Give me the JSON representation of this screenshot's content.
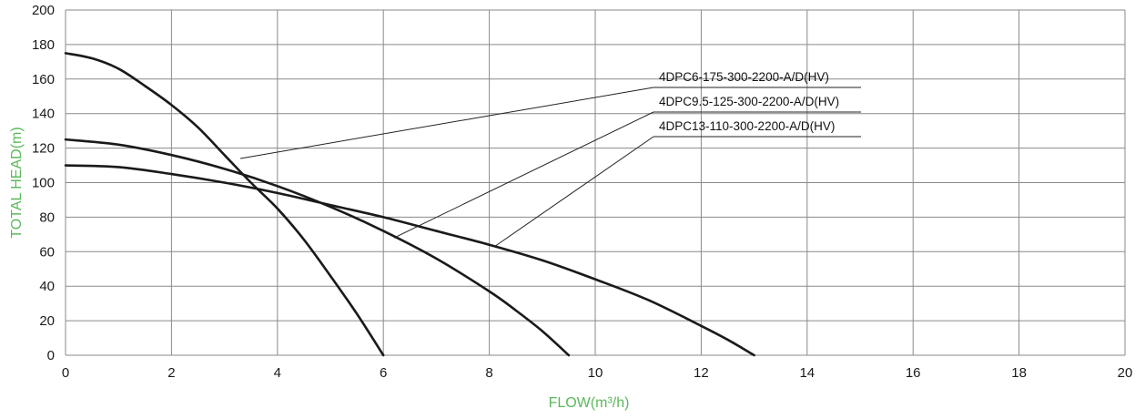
{
  "chart_data": {
    "type": "line",
    "title": "",
    "xlabel": "FLOW(m³/h)",
    "ylabel": "TOTAL HEAD(m)",
    "label_color": "#5cb85c",
    "line_color": "#1a1a1a",
    "grid_color": "#8a8a8a",
    "grid": true,
    "xlim": [
      0,
      20
    ],
    "ylim": [
      0,
      200
    ],
    "xticks": [
      0,
      2,
      4,
      6,
      8,
      10,
      12,
      14,
      16,
      18,
      20
    ],
    "yticks": [
      0,
      20,
      40,
      60,
      80,
      100,
      120,
      140,
      160,
      180,
      200
    ],
    "series": [
      {
        "name": "4DPC6-175-300-2200-A/D(HV)",
        "x": [
          0,
          0.5,
          1,
          1.5,
          2,
          2.5,
          3,
          3.5,
          4,
          4.5,
          5,
          5.5,
          6
        ],
        "y": [
          175,
          172,
          166,
          156,
          145,
          132,
          116,
          100,
          85,
          67,
          46,
          24,
          0
        ]
      },
      {
        "name": "4DPC9.5-125-300-2200-A/D(HV)",
        "x": [
          0,
          1,
          2,
          3,
          4,
          5,
          6,
          7,
          8,
          8.5,
          9,
          9.5
        ],
        "y": [
          125,
          122,
          116,
          108,
          98,
          86,
          72,
          56,
          37,
          26,
          14,
          0
        ]
      },
      {
        "name": "4DPC13-110-300-2200-A/D(HV)",
        "x": [
          0,
          1,
          2,
          3,
          4,
          5,
          6,
          7,
          8,
          9,
          10,
          11,
          12,
          12.5,
          13
        ],
        "y": [
          110,
          109,
          105,
          100,
          94,
          87,
          80,
          72,
          64,
          55,
          44,
          32,
          17,
          9,
          0
        ]
      }
    ],
    "annotations": [
      {
        "text": "4DPC6-175-300-2200-A/D(HV)",
        "series": 0,
        "point": [
          3.3,
          114
        ]
      },
      {
        "text": "4DPC9.5-125-300-2200-A/D(HV)",
        "series": 1,
        "point": [
          6.2,
          68
        ]
      },
      {
        "text": "4DPC13-110-300-2200-A/D(HV)",
        "series": 2,
        "point": [
          8.1,
          63
        ]
      }
    ]
  }
}
